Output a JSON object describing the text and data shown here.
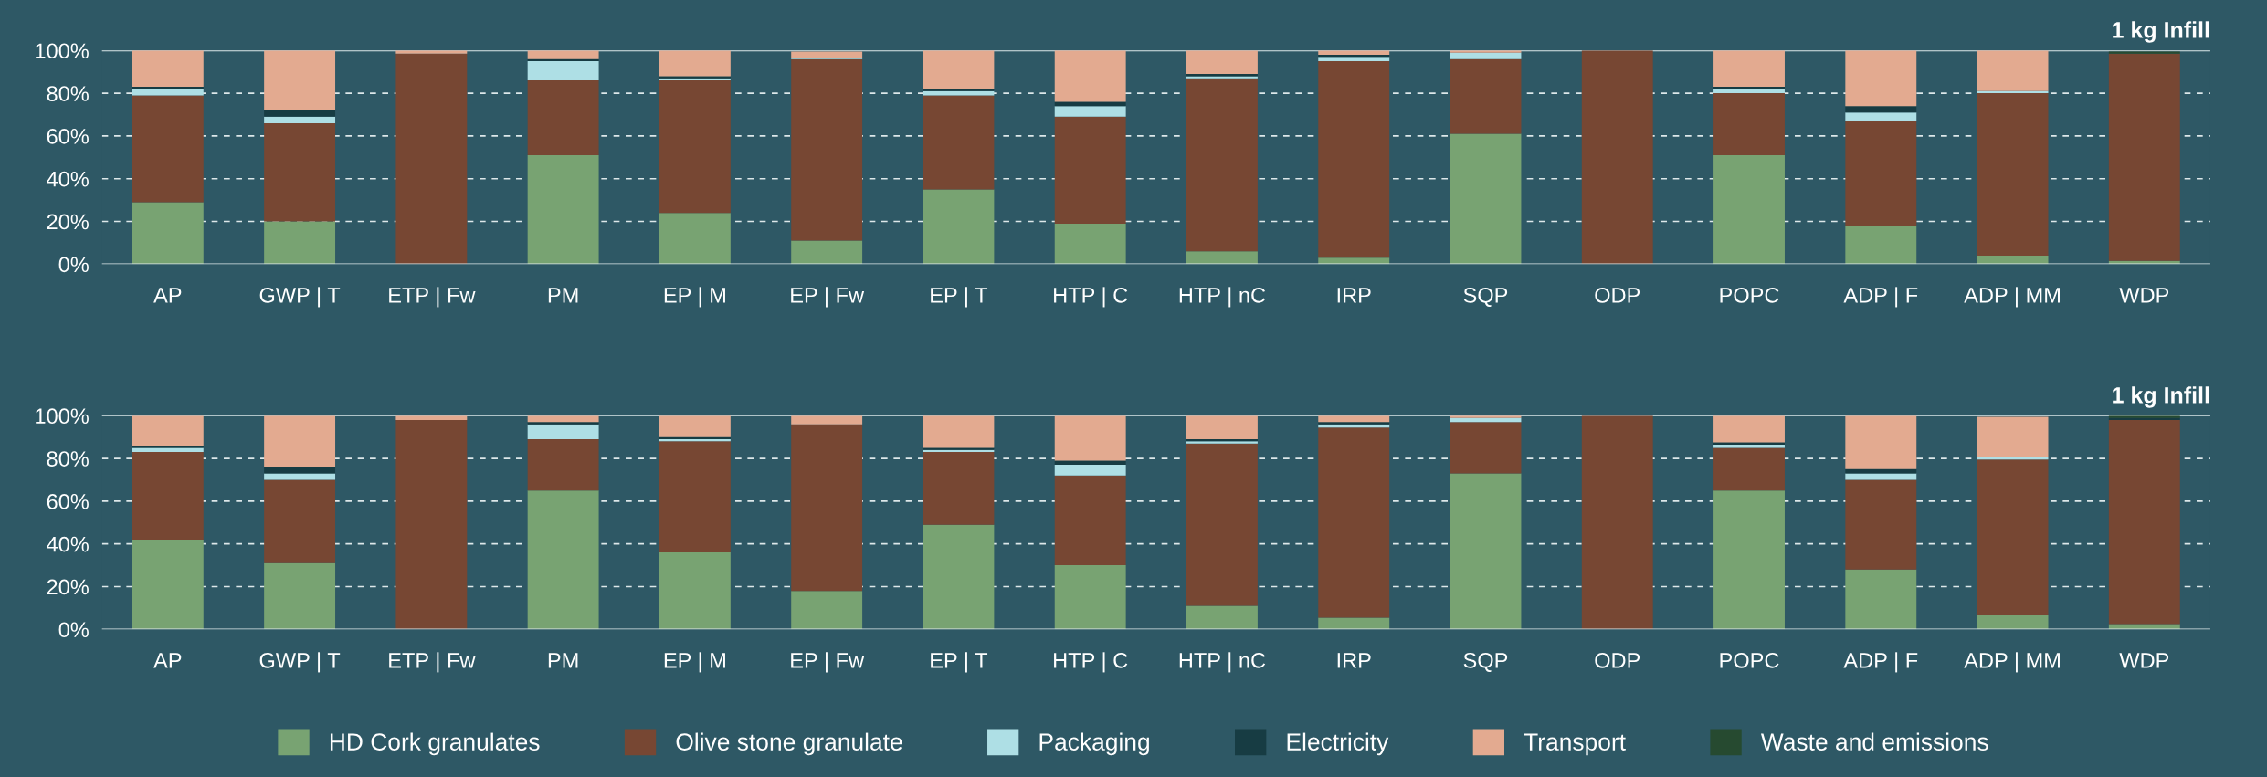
{
  "chart_data": [
    {
      "type": "bar",
      "stacked": true,
      "title": "1 kg Infill",
      "categories": [
        "AP",
        "GWP | T",
        "ETP | Fw",
        "PM",
        "EP | M",
        "EP | Fw",
        "EP | T",
        "HTP | C",
        "HTP | nC",
        "IRP",
        "SQP",
        "ODP",
        "POPC",
        "ADP | F",
        "ADP | MM",
        "WDP"
      ],
      "ylim": [
        0,
        100
      ],
      "yticks": [
        {
          "value": 0,
          "label": "0%"
        },
        {
          "value": 20,
          "label": "20%"
        },
        {
          "value": 40,
          "label": "40%"
        },
        {
          "value": 60,
          "label": "60%"
        },
        {
          "value": 80,
          "label": "80%"
        },
        {
          "value": 100,
          "label": "100%"
        }
      ],
      "grid": "y",
      "legend": "bottom",
      "series": [
        {
          "name": "HD Cork granulates",
          "color": "#78a372",
          "values": [
            29,
            20,
            0,
            51,
            24,
            11,
            35,
            19,
            6,
            3,
            61,
            0,
            51,
            18,
            4,
            1.5
          ]
        },
        {
          "name": "Olive stone granulate",
          "color": "#774733",
          "values": [
            50,
            46,
            98.5,
            35,
            62,
            85,
            44,
            50,
            81,
            92,
            35,
            100,
            29,
            49,
            76,
            97
          ]
        },
        {
          "name": "Packaging",
          "color": "#aedfe5",
          "values": [
            3,
            3,
            0,
            9,
            1,
            0.5,
            2,
            5,
            1,
            2,
            3,
            0,
            2,
            4,
            1,
            0
          ]
        },
        {
          "name": "Electricity",
          "color": "#173c43",
          "values": [
            1,
            3,
            0,
            1,
            1,
            null,
            1,
            2,
            1,
            1,
            0,
            0,
            1,
            3,
            0,
            0
          ]
        },
        {
          "name": "Transport",
          "color": "#e3aa90",
          "values": [
            17,
            28,
            1.5,
            4,
            12,
            3,
            18,
            24,
            11,
            2,
            1,
            0,
            17,
            26,
            19,
            0
          ]
        },
        {
          "name": "Waste and emissions",
          "color": "#264a30",
          "values": [
            0,
            0,
            0,
            0,
            0,
            0,
            0,
            0,
            0,
            0,
            0,
            0,
            0,
            0,
            0,
            1
          ]
        }
      ]
    },
    {
      "type": "bar",
      "stacked": true,
      "title": "1 kg Infill",
      "categories": [
        "AP",
        "GWP | T",
        "ETP | Fw",
        "PM",
        "EP | M",
        "EP | Fw",
        "EP | T",
        "HTP | C",
        "HTP | nC",
        "IRP",
        "SQP",
        "ODP",
        "POPC",
        "ADP | F",
        "ADP | MM",
        "WDP"
      ],
      "ylim": [
        0,
        100
      ],
      "yticks": [
        {
          "value": 0,
          "label": "0%"
        },
        {
          "value": 20,
          "label": "20%"
        },
        {
          "value": 40,
          "label": "40%"
        },
        {
          "value": 60,
          "label": "60%"
        },
        {
          "value": 80,
          "label": "80%"
        },
        {
          "value": 100,
          "label": "100%"
        }
      ],
      "grid": "y",
      "series": [
        {
          "color": "#78a372",
          "values": [
            42,
            31,
            0,
            65,
            36,
            18,
            49,
            30,
            11,
            5.5,
            73,
            0,
            65,
            28,
            6.5,
            2.5
          ]
        },
        {
          "color": "#774733",
          "values": [
            41,
            39,
            98,
            24,
            52,
            78,
            34,
            42,
            76,
            89,
            24,
            100,
            20,
            42,
            73,
            95.5
          ]
        },
        {
          "color": "#aedfe5",
          "values": [
            2,
            3,
            0,
            7,
            1,
            0,
            1,
            5,
            1,
            1.5,
            2,
            0,
            1.5,
            3,
            1,
            0
          ]
        },
        {
          "color": "#173c43",
          "values": [
            1,
            3,
            0,
            1,
            1,
            0,
            1,
            2,
            1,
            1,
            0,
            0,
            1,
            2,
            null,
            1
          ]
        },
        {
          "color": "#e3aa90",
          "values": [
            14,
            24,
            2,
            3,
            10,
            4,
            15,
            21,
            11,
            3,
            1,
            0,
            12.5,
            25,
            19,
            0
          ]
        },
        {
          "color": "#264a30",
          "values": [
            0,
            0,
            0,
            0,
            0,
            0,
            0,
            0,
            0,
            0,
            0,
            0,
            0,
            0,
            0,
            1
          ]
        }
      ]
    }
  ]
}
